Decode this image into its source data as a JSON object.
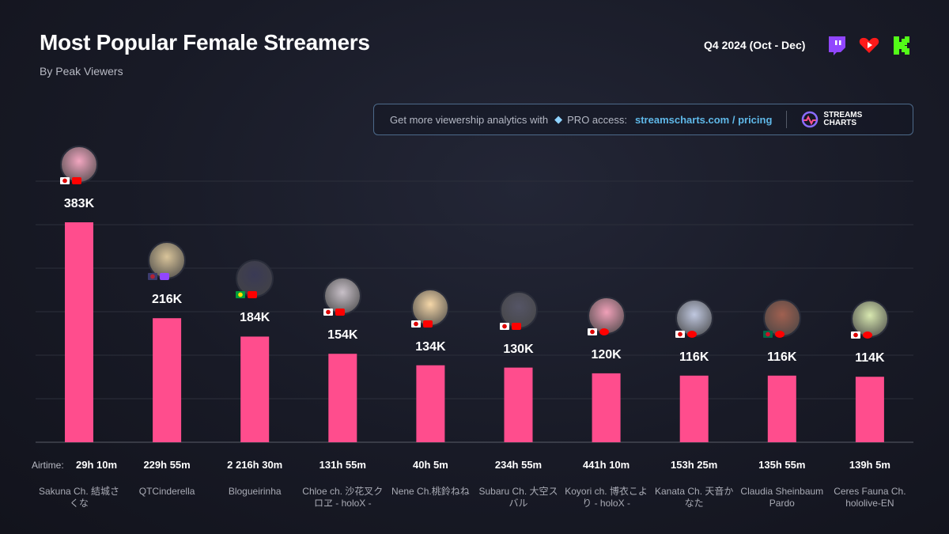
{
  "header": {
    "title": "Most Popular Female Streamers",
    "subtitle": "By Peak Viewers",
    "period": "Q4 2024 (Oct - Dec)",
    "platform_icons": [
      "twitch-icon",
      "youtube-heart-icon",
      "kick-icon"
    ]
  },
  "promo": {
    "text": "Get more viewership analytics with",
    "pro": "PRO access:",
    "link": "streamscharts.com / pricing",
    "logo_line1": "STREAMS",
    "logo_line2": "CHARTS"
  },
  "colors": {
    "bar": "#ff4d8d",
    "twitch": "#9146ff",
    "youtube": "#ff0000",
    "kick": "#53fc18",
    "link": "#5fb8e8"
  },
  "chart_data": {
    "type": "bar",
    "airtime_label": "Airtime:",
    "categories": [
      "Sakuna Ch. 結城さくな",
      "QTCinderella",
      "Blogueirinha",
      "Chloe ch. 沙花叉クロヱ - holoX -",
      "Nene Ch.桃鈴ねね",
      "Subaru Ch. 大空スバル",
      "Koyori ch. 博衣こより - holoX -",
      "Kanata Ch. 天音かなた",
      "Claudia Sheinbaum Pardo",
      "Ceres Fauna Ch. hololive-EN"
    ],
    "values": [
      383,
      216,
      184,
      154,
      134,
      130,
      120,
      116,
      116,
      114
    ],
    "labels": [
      "383K",
      "216K",
      "184K",
      "154K",
      "134K",
      "130K",
      "120K",
      "116K",
      "116K",
      "114K"
    ],
    "airtime": [
      "29h 10m",
      "229h 55m",
      "2 216h 30m",
      "131h 55m",
      "40h 5m",
      "234h 55m",
      "441h 10m",
      "153h 25m",
      "135h 55m",
      "139h 5m"
    ],
    "countries": [
      "jp",
      "us",
      "br",
      "jp",
      "jp",
      "jp",
      "jp",
      "jp",
      "mx",
      "jp"
    ],
    "platforms": [
      "youtube",
      "twitch",
      "youtube",
      "youtube",
      "youtube",
      "youtube",
      "youtube-heart",
      "youtube-heart",
      "youtube-heart",
      "youtube-heart"
    ],
    "unit": "K peak viewers",
    "ylim": [
      0,
      400
    ],
    "grid": true
  }
}
